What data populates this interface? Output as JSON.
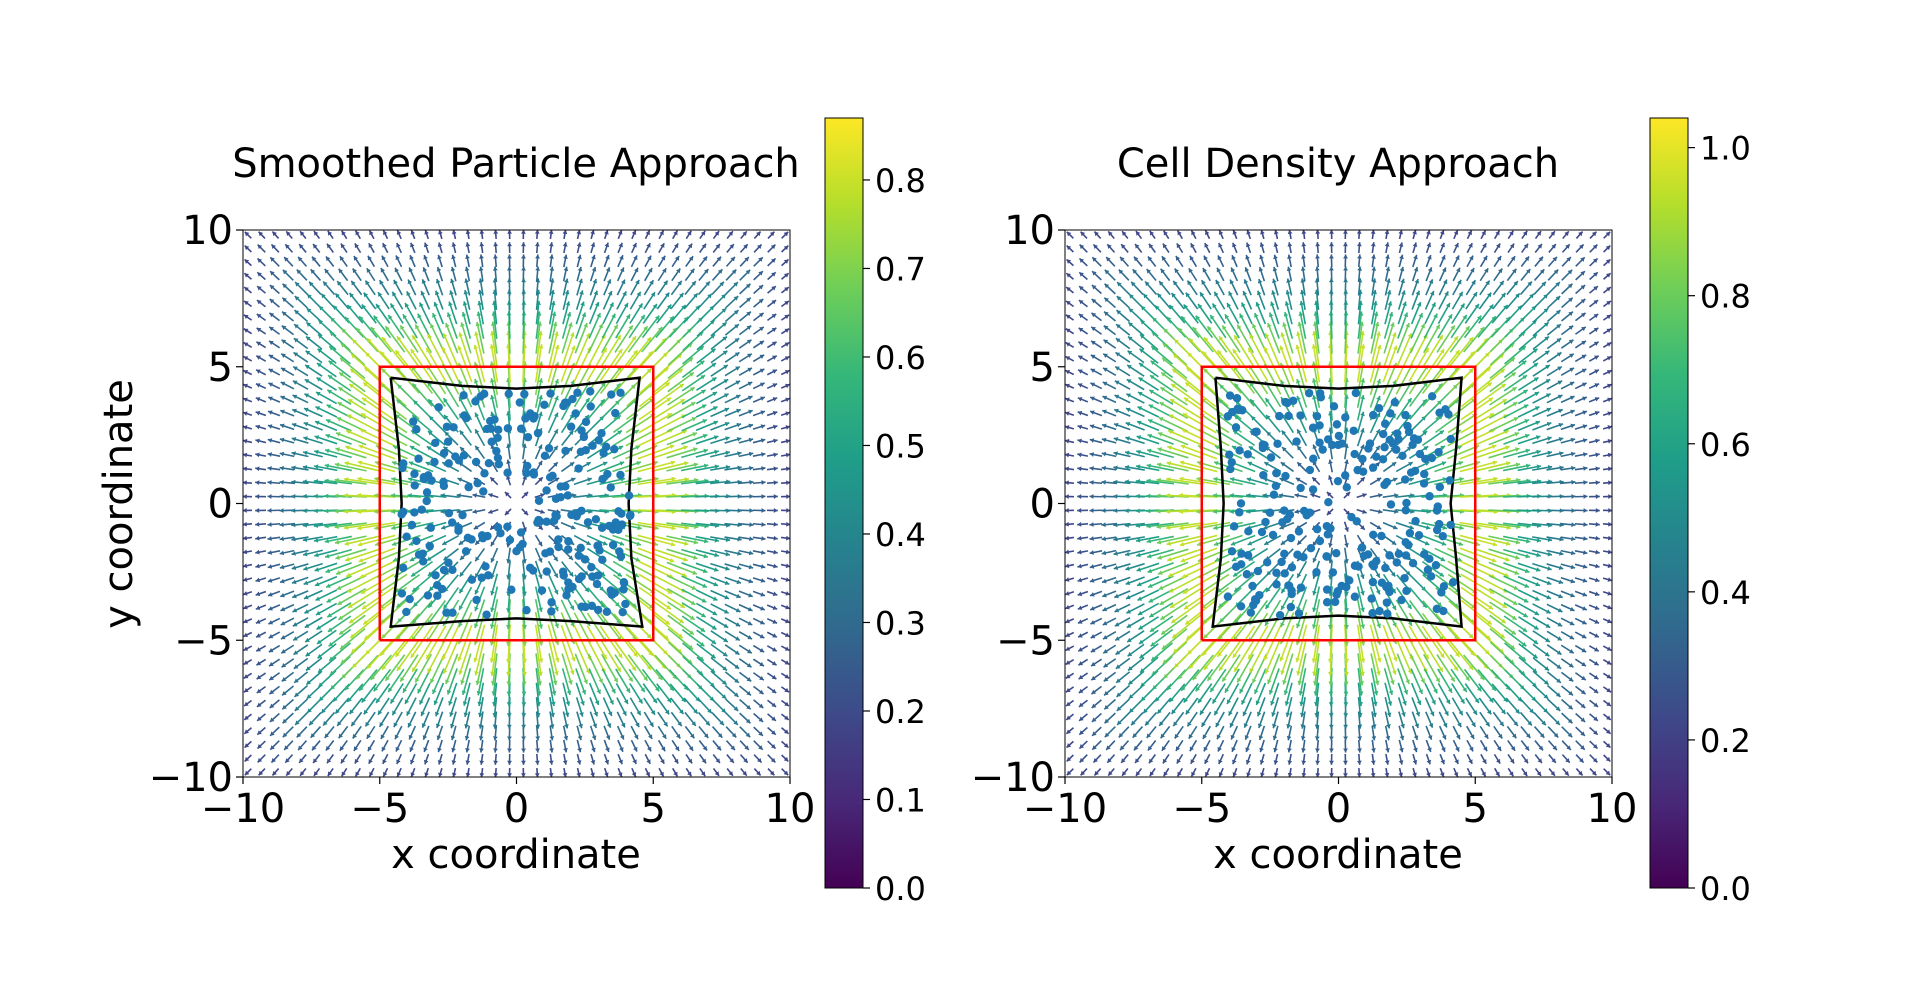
{
  "figure": {
    "panels": [
      {
        "title": "Smoothed Particle Approach",
        "colorbar": {
          "min": 0.0,
          "max": 0.87,
          "ticks": [
            0.0,
            0.1,
            0.2,
            0.3,
            0.4,
            0.5,
            0.6,
            0.7,
            0.8
          ],
          "tick_labels": [
            "0.0",
            "0.1",
            "0.2",
            "0.3",
            "0.4",
            "0.5",
            "0.6",
            "0.7",
            "0.8"
          ]
        }
      },
      {
        "title": "Cell Density Approach",
        "colorbar": {
          "min": 0.0,
          "max": 1.04,
          "ticks": [
            0.0,
            0.2,
            0.4,
            0.6,
            0.8,
            1.0
          ],
          "tick_labels": [
            "0.0",
            "0.2",
            "0.4",
            "0.6",
            "0.8",
            "1.0"
          ]
        }
      }
    ]
  },
  "chart_data": [
    {
      "type": "scatter",
      "subtype": "quiver+scatter",
      "title": "Smoothed Particle Approach",
      "xlabel": "x coordinate",
      "ylabel": "y coordinate",
      "xlim": [
        -10,
        10
      ],
      "ylim": [
        -10,
        10
      ],
      "xticks": [
        -10,
        -5,
        0,
        5,
        10
      ],
      "xtick_labels": [
        "−10",
        "−5",
        "0",
        "5",
        "10"
      ],
      "yticks": [
        -10,
        -5,
        0,
        5,
        10
      ],
      "ytick_labels": [
        "−10",
        "−5",
        "0",
        "5",
        "10"
      ],
      "quiver": {
        "grid_min": -9.75,
        "grid_max": 9.75,
        "grid_n": 40,
        "field": "radial outward from square [-5,5], peak magnitude at edges",
        "colormap": "viridis"
      },
      "reference_square": {
        "color": "#ff0000",
        "corners": [
          [
            -5,
            -5
          ],
          [
            5,
            -5
          ],
          [
            5,
            5
          ],
          [
            -5,
            5
          ]
        ]
      },
      "deformed_boundary": {
        "color": "#000000",
        "points": [
          [
            -4.6,
            4.6
          ],
          [
            -2,
            4.3
          ],
          [
            0,
            4.2
          ],
          [
            2,
            4.3
          ],
          [
            4.5,
            4.6
          ],
          [
            4.2,
            2
          ],
          [
            4.1,
            0
          ],
          [
            4.2,
            -2
          ],
          [
            4.6,
            -4.5
          ],
          [
            2,
            -4.3
          ],
          [
            0,
            -4.2
          ],
          [
            -2,
            -4.3
          ],
          [
            -4.6,
            -4.5
          ],
          [
            -4.3,
            -2
          ],
          [
            -4.2,
            0
          ],
          [
            -4.3,
            2
          ],
          [
            -4.6,
            4.6
          ]
        ]
      },
      "particles": {
        "count": 230,
        "color": "#1f77b4",
        "region": "inside deformed boundary, clustered in ring around center"
      }
    },
    {
      "type": "scatter",
      "subtype": "quiver+scatter",
      "title": "Cell Density Approach",
      "xlabel": "x coordinate",
      "ylabel": "",
      "xlim": [
        -10,
        10
      ],
      "ylim": [
        -10,
        10
      ],
      "xticks": [
        -10,
        -5,
        0,
        5,
        10
      ],
      "xtick_labels": [
        "−10",
        "−5",
        "0",
        "5",
        "10"
      ],
      "yticks": [
        -10,
        -5,
        0,
        5,
        10
      ],
      "ytick_labels": [
        "−10",
        "−5",
        "0",
        "5",
        "10"
      ],
      "quiver": {
        "grid_min": -9.75,
        "grid_max": 9.75,
        "grid_n": 40,
        "field": "radial outward from square [-5,5], peak magnitude at edges",
        "colormap": "viridis"
      },
      "reference_square": {
        "color": "#ff0000",
        "corners": [
          [
            -5,
            -5
          ],
          [
            5,
            -5
          ],
          [
            5,
            5
          ],
          [
            -5,
            5
          ]
        ]
      },
      "deformed_boundary": {
        "color": "#000000",
        "points": [
          [
            -4.5,
            4.6
          ],
          [
            -2,
            4.3
          ],
          [
            0,
            4.2
          ],
          [
            2,
            4.3
          ],
          [
            4.5,
            4.6
          ],
          [
            4.3,
            2
          ],
          [
            4.1,
            0
          ],
          [
            4.3,
            -2
          ],
          [
            4.5,
            -4.5
          ],
          [
            2,
            -4.2
          ],
          [
            0,
            -4.1
          ],
          [
            -2,
            -4.2
          ],
          [
            -4.6,
            -4.5
          ],
          [
            -4.3,
            -2
          ],
          [
            -4.2,
            0
          ],
          [
            -4.3,
            2
          ],
          [
            -4.5,
            4.6
          ]
        ]
      },
      "particles": {
        "count": 230,
        "color": "#1f77b4",
        "region": "inside deformed boundary, clustered in ring around center"
      }
    }
  ]
}
